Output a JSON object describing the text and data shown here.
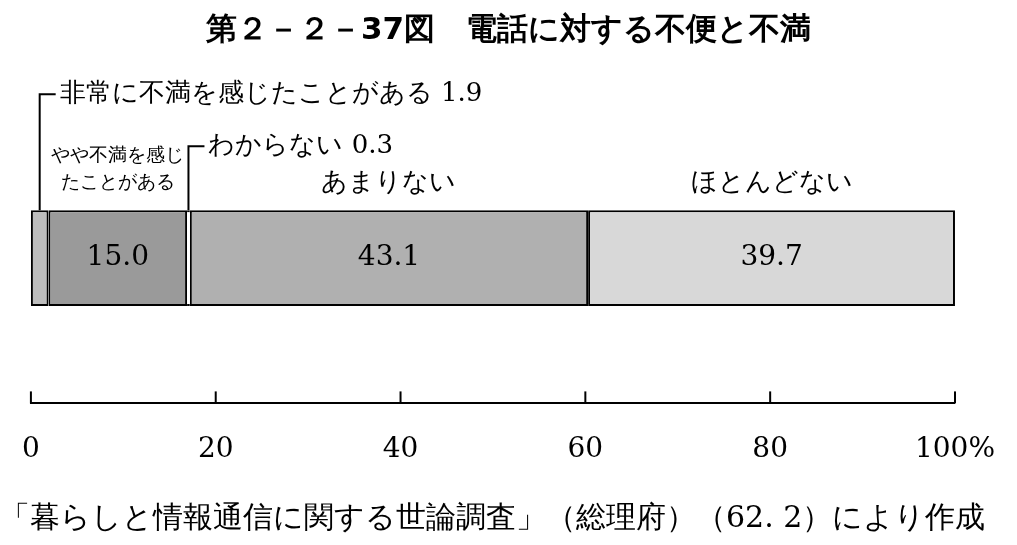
{
  "chart_data": {
    "type": "bar",
    "orientation": "horizontal",
    "stacked": true,
    "title": "第２－２－37図　電話に対する不便と不満",
    "categories": [
      null
    ],
    "series": [
      {
        "name": "非常に不満を感じたことがある",
        "color": "#bdbdbd",
        "values": [
          1.9
        ],
        "value_labels": [
          "1.9"
        ]
      },
      {
        "name": "やや不満を感じたことがある",
        "color": "#9a9a9a",
        "values": [
          15.0
        ],
        "value_labels": [
          "15.0"
        ]
      },
      {
        "name": "わからない",
        "color": "#ffffff",
        "values": [
          0.3
        ],
        "value_labels": [
          "0.3"
        ]
      },
      {
        "name": "あまりない",
        "color": "#b0b0b0",
        "values": [
          43.1
        ],
        "value_labels": [
          "43.1"
        ]
      },
      {
        "name": "ほとんどない",
        "color": "#d8d8d8",
        "values": [
          39.7
        ],
        "value_labels": [
          "39.7"
        ]
      }
    ],
    "xlim": [
      0,
      100
    ],
    "xticks": [
      0,
      20,
      40,
      60,
      80,
      {
        "value": 100,
        "label": "100%"
      }
    ],
    "grid": false,
    "legend": false,
    "annotations": [
      "「暮らしと情報通信に関する世論調査」（総理府）（62. 2）により作成"
    ]
  }
}
